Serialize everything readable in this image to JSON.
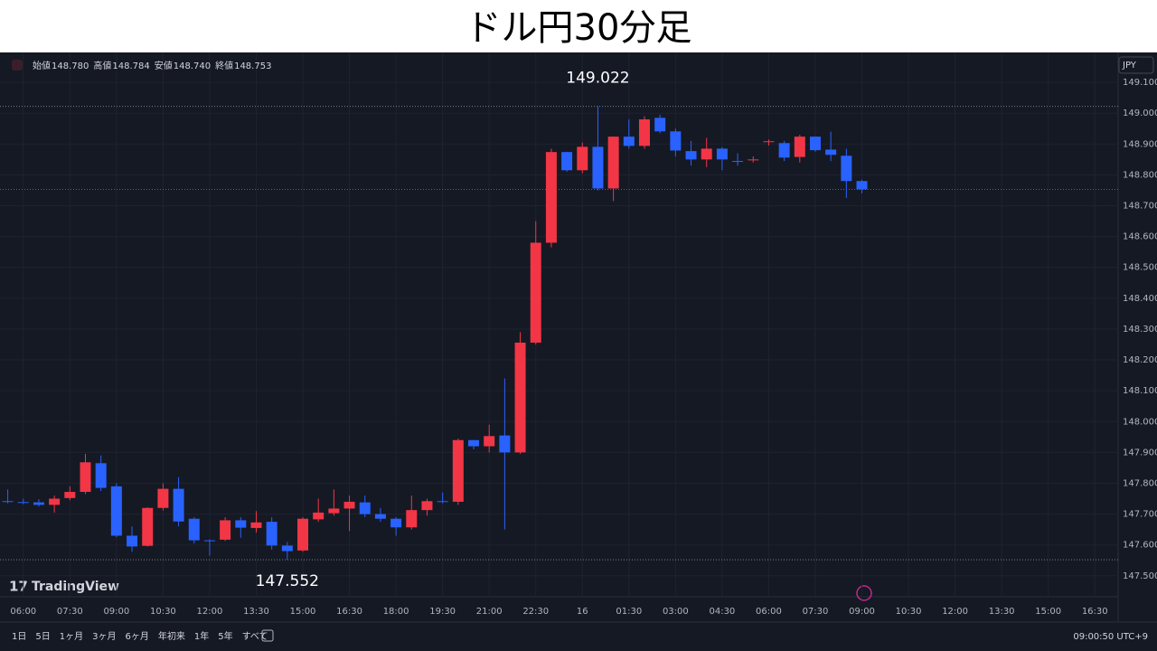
{
  "chart_data": {
    "type": "candlestick",
    "title": "ドル円30分足",
    "categories": [
      null,
      "06:00",
      null,
      null,
      "07:30",
      null,
      null,
      "09:00",
      null,
      null,
      "10:30",
      null,
      null,
      "12:00",
      null,
      null,
      "13:30",
      null,
      null,
      "15:00",
      null,
      null,
      "16:30",
      null,
      null,
      "18:00",
      null,
      null,
      "19:30",
      null,
      null,
      "21:00",
      null,
      null,
      "22:30",
      null,
      null,
      "16",
      null,
      null,
      "01:30",
      null,
      null,
      "03:00",
      null,
      null,
      "04:30",
      null,
      null,
      "06:00",
      null,
      null,
      "07:30",
      null,
      null,
      "09:00",
      null,
      null,
      "10:30",
      null,
      null,
      "12:00",
      null,
      null,
      "13:30",
      null,
      null,
      "15:00",
      null,
      null,
      "16:30",
      null
    ],
    "open": [
      147.742,
      147.739,
      147.738,
      147.73,
      147.752,
      147.772,
      147.865,
      147.79,
      147.63,
      147.597,
      147.72,
      147.782,
      147.685,
      147.615,
      147.617,
      147.68,
      147.655,
      147.675,
      147.598,
      147.582,
      147.683,
      147.703,
      147.718,
      147.738,
      147.7,
      147.685,
      147.657,
      147.713,
      147.742,
      147.74,
      147.94,
      147.92,
      147.955,
      147.9,
      148.256,
      148.58,
      148.874,
      148.815,
      148.891,
      148.756,
      148.924,
      148.894,
      148.985,
      148.941,
      148.877,
      148.85,
      148.885,
      148.845,
      148.848,
      148.908,
      148.903,
      148.858,
      148.924,
      148.882,
      148.862,
      148.78,
      null,
      null,
      null,
      null,
      null,
      null,
      null,
      null,
      null,
      null,
      null,
      null,
      null,
      null,
      null,
      null
    ],
    "high": [
      147.78,
      147.75,
      147.748,
      147.76,
      147.79,
      147.895,
      147.89,
      147.8,
      147.66,
      147.722,
      147.8,
      147.82,
      147.69,
      147.618,
      147.69,
      147.69,
      147.71,
      147.69,
      147.61,
      147.69,
      147.75,
      147.78,
      147.76,
      147.76,
      147.72,
      147.69,
      147.76,
      147.75,
      147.77,
      147.945,
      147.94,
      147.99,
      148.14,
      148.29,
      148.65,
      148.885,
      148.875,
      148.905,
      149.022,
      148.924,
      148.98,
      148.99,
      148.995,
      148.95,
      148.91,
      148.92,
      148.89,
      148.87,
      148.86,
      148.915,
      148.91,
      148.93,
      148.925,
      148.94,
      148.885,
      148.784,
      null,
      null,
      null,
      null,
      null,
      null,
      null,
      null,
      null,
      null,
      null,
      null,
      null,
      null,
      null,
      null
    ],
    "low": [
      147.735,
      147.732,
      147.725,
      147.705,
      147.745,
      147.765,
      147.775,
      147.625,
      147.578,
      147.595,
      147.712,
      147.66,
      147.605,
      147.565,
      147.613,
      147.623,
      147.64,
      147.585,
      147.552,
      147.578,
      147.675,
      147.695,
      147.645,
      147.69,
      147.675,
      147.63,
      147.65,
      147.695,
      147.735,
      147.73,
      147.91,
      147.9,
      147.65,
      147.895,
      148.25,
      148.565,
      148.81,
      148.805,
      148.75,
      148.715,
      148.885,
      148.885,
      148.935,
      148.86,
      148.83,
      148.825,
      148.815,
      148.83,
      148.84,
      148.895,
      148.845,
      148.84,
      148.875,
      148.845,
      148.725,
      148.74,
      null,
      null,
      null,
      null,
      null,
      null,
      null,
      null,
      null,
      null,
      null,
      null,
      null,
      null,
      null,
      null
    ],
    "close": [
      147.74,
      147.737,
      147.73,
      147.75,
      147.772,
      147.868,
      147.785,
      147.63,
      147.595,
      147.72,
      147.782,
      147.676,
      147.615,
      147.613,
      147.68,
      147.656,
      147.673,
      147.598,
      147.58,
      147.685,
      147.705,
      147.718,
      147.74,
      147.7,
      147.685,
      147.657,
      147.713,
      147.742,
      147.74,
      147.94,
      147.92,
      147.953,
      147.9,
      148.256,
      148.58,
      148.874,
      148.815,
      148.891,
      148.756,
      148.924,
      148.894,
      148.98,
      148.941,
      148.879,
      148.85,
      148.885,
      148.85,
      148.843,
      148.85,
      148.909,
      148.856,
      148.924,
      148.88,
      148.865,
      148.78,
      148.753,
      null,
      null,
      null,
      null,
      null,
      null,
      null,
      null,
      null,
      null,
      null,
      null,
      null,
      null,
      null,
      null
    ],
    "up_color": "#f23645",
    "down_color": "#2962ff",
    "background": "#151924",
    "grid": true,
    "ylim": [
      147.432,
      149.197
    ],
    "yticks": [
      {
        "value": 147.5,
        "label": "147.500"
      },
      {
        "value": 147.6,
        "label": "147.600"
      },
      {
        "value": 147.7,
        "label": "147.700"
      },
      {
        "value": 147.8,
        "label": "147.800"
      },
      {
        "value": 147.9,
        "label": "147.900"
      },
      {
        "value": 148.0,
        "label": "148.000"
      },
      {
        "value": 148.1,
        "label": "148.100"
      },
      {
        "value": 148.2,
        "label": "148.200"
      },
      {
        "value": 148.3,
        "label": "148.300"
      },
      {
        "value": 148.4,
        "label": "148.400"
      },
      {
        "value": 148.5,
        "label": "148.500"
      },
      {
        "value": 148.6,
        "label": "148.600"
      },
      {
        "value": 148.7,
        "label": "148.700"
      },
      {
        "value": 148.8,
        "label": "148.800"
      },
      {
        "value": 148.9,
        "label": "148.900"
      },
      {
        "value": 149.0,
        "label": "149.000"
      },
      {
        "value": 149.1,
        "label": "149.100"
      }
    ],
    "annotations": [
      {
        "value": 149.022,
        "label": "149.022"
      },
      {
        "value": 147.552,
        "label": "147.552"
      }
    ]
  },
  "ui": {
    "ohlc": [
      {
        "name": "始値",
        "value": "148.780"
      },
      {
        "name": "高値",
        "value": "148.784"
      },
      {
        "name": "安値",
        "value": "148.740"
      },
      {
        "name": "終値",
        "value": "148.753"
      }
    ],
    "currency": "JPY",
    "brand": "TradingView",
    "range_buttons": [
      "1日",
      "5日",
      "1ヶ月",
      "3ヶ月",
      "6ヶ月",
      "年初来",
      "1年",
      "5年",
      "すべて"
    ],
    "clock": "09:00:50 UTC+9"
  }
}
